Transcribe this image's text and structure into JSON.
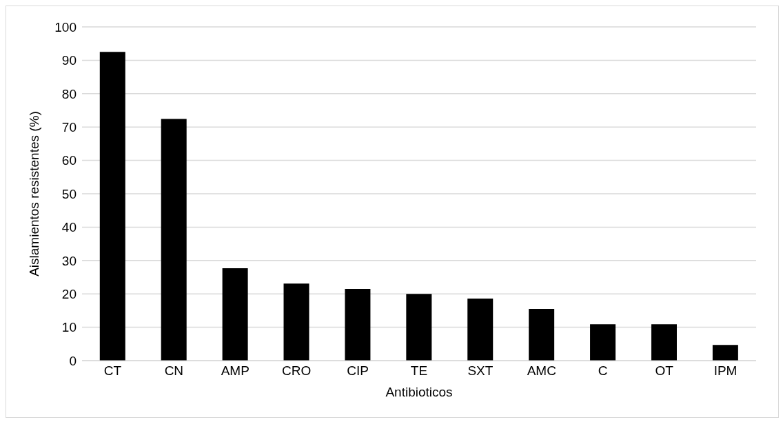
{
  "chart_data": {
    "type": "bar",
    "xlabel": "Antibioticos",
    "ylabel": "Aislamientos resistentes (%)",
    "categories": [
      "CT",
      "CN",
      "AMP",
      "CRO",
      "CIP",
      "TE",
      "SXT",
      "AMC",
      "C",
      "OT",
      "IPM"
    ],
    "values": [
      92.5,
      72.4,
      27.7,
      23.1,
      21.5,
      20.0,
      18.6,
      15.5,
      10.9,
      10.9,
      4.7
    ],
    "color": "#000000",
    "ylim": [
      0,
      100
    ],
    "yticks": [
      0,
      10,
      20,
      30,
      40,
      50,
      60,
      70,
      80,
      90,
      100
    ],
    "grid": "y"
  }
}
